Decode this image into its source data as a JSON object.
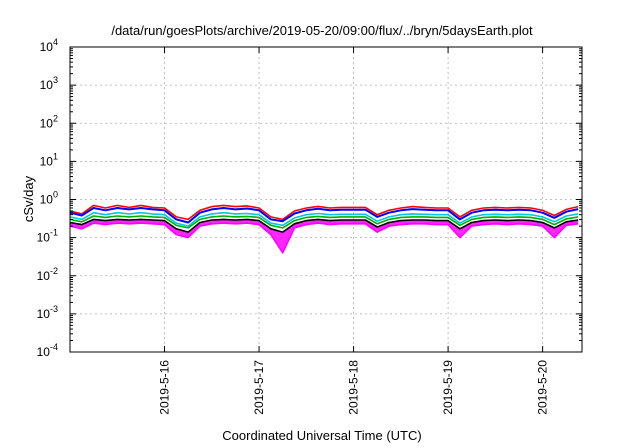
{
  "chart_data": {
    "type": "line",
    "title": "/data/run/goesPlots/archive/2019-05-20/09:00/flux/../bryn/5daysEarth.plot",
    "xlabel": "Coordinated Universal Time (UTC)",
    "ylabel": "cSv/day",
    "yscale": "log",
    "ylim": [
      0.0001,
      10000
    ],
    "xlim": [
      "2019-05-15T00:00",
      "2019-05-20T10:00"
    ],
    "y_ticks": [
      {
        "base": "10",
        "exp": "-4"
      },
      {
        "base": "10",
        "exp": "-3"
      },
      {
        "base": "10",
        "exp": "-2"
      },
      {
        "base": "10",
        "exp": "-1"
      },
      {
        "base": "10",
        "exp": "0"
      },
      {
        "base": "10",
        "exp": "1"
      },
      {
        "base": "10",
        "exp": "2"
      },
      {
        "base": "10",
        "exp": "3"
      },
      {
        "base": "10",
        "exp": "4"
      }
    ],
    "x_ticks": [
      "2019-5-16",
      "2019-5-17",
      "2019-5-18",
      "2019-5-19",
      "2019-5-20"
    ],
    "grid": true,
    "legend": "none",
    "x": [
      "2019-05-15T00:00",
      "2019-05-15T03:00",
      "2019-05-15T06:00",
      "2019-05-15T09:00",
      "2019-05-15T12:00",
      "2019-05-15T15:00",
      "2019-05-15T18:00",
      "2019-05-15T21:00",
      "2019-05-16T00:00",
      "2019-05-16T03:00",
      "2019-05-16T06:00",
      "2019-05-16T09:00",
      "2019-05-16T12:00",
      "2019-05-16T15:00",
      "2019-05-16T18:00",
      "2019-05-16T21:00",
      "2019-05-17T00:00",
      "2019-05-17T03:00",
      "2019-05-17T06:00",
      "2019-05-17T09:00",
      "2019-05-17T12:00",
      "2019-05-17T15:00",
      "2019-05-17T18:00",
      "2019-05-17T21:00",
      "2019-05-18T00:00",
      "2019-05-18T03:00",
      "2019-05-18T06:00",
      "2019-05-18T09:00",
      "2019-05-18T12:00",
      "2019-05-18T15:00",
      "2019-05-18T18:00",
      "2019-05-18T21:00",
      "2019-05-19T00:00",
      "2019-05-19T03:00",
      "2019-05-19T06:00",
      "2019-05-19T09:00",
      "2019-05-19T12:00",
      "2019-05-19T15:00",
      "2019-05-19T18:00",
      "2019-05-19T21:00",
      "2019-05-20T00:00",
      "2019-05-20T03:00",
      "2019-05-20T06:00",
      "2019-05-20T09:00"
    ],
    "series": [
      {
        "color": "#ff0000",
        "values": [
          0.5,
          0.42,
          0.7,
          0.6,
          0.7,
          0.62,
          0.7,
          0.62,
          0.6,
          0.35,
          0.3,
          0.52,
          0.65,
          0.7,
          0.65,
          0.68,
          0.6,
          0.35,
          0.3,
          0.5,
          0.6,
          0.66,
          0.6,
          0.62,
          0.62,
          0.62,
          0.4,
          0.52,
          0.6,
          0.65,
          0.62,
          0.6,
          0.6,
          0.35,
          0.52,
          0.6,
          0.62,
          0.6,
          0.62,
          0.6,
          0.52,
          0.38,
          0.55,
          0.65
        ]
      },
      {
        "color": "#0000ff",
        "values": [
          0.45,
          0.38,
          0.6,
          0.52,
          0.6,
          0.55,
          0.6,
          0.55,
          0.52,
          0.3,
          0.25,
          0.45,
          0.55,
          0.6,
          0.55,
          0.58,
          0.52,
          0.3,
          0.27,
          0.43,
          0.52,
          0.57,
          0.52,
          0.54,
          0.54,
          0.54,
          0.35,
          0.45,
          0.52,
          0.56,
          0.54,
          0.52,
          0.52,
          0.3,
          0.45,
          0.52,
          0.54,
          0.52,
          0.54,
          0.52,
          0.45,
          0.33,
          0.48,
          0.56
        ]
      },
      {
        "color": "#00c8e0",
        "values": [
          0.35,
          0.3,
          0.45,
          0.4,
          0.45,
          0.42,
          0.45,
          0.42,
          0.4,
          0.24,
          0.2,
          0.35,
          0.42,
          0.45,
          0.42,
          0.43,
          0.4,
          0.24,
          0.21,
          0.33,
          0.4,
          0.43,
          0.4,
          0.41,
          0.41,
          0.41,
          0.27,
          0.35,
          0.4,
          0.42,
          0.41,
          0.4,
          0.4,
          0.24,
          0.35,
          0.4,
          0.41,
          0.4,
          0.41,
          0.4,
          0.35,
          0.26,
          0.37,
          0.42
        ]
      },
      {
        "color": "#00b000",
        "values": [
          0.3,
          0.26,
          0.37,
          0.34,
          0.37,
          0.35,
          0.37,
          0.35,
          0.34,
          0.21,
          0.18,
          0.3,
          0.35,
          0.37,
          0.35,
          0.36,
          0.34,
          0.21,
          0.18,
          0.28,
          0.34,
          0.36,
          0.34,
          0.35,
          0.35,
          0.35,
          0.23,
          0.3,
          0.34,
          0.35,
          0.35,
          0.34,
          0.34,
          0.21,
          0.3,
          0.34,
          0.35,
          0.34,
          0.35,
          0.34,
          0.3,
          0.22,
          0.31,
          0.35
        ]
      },
      {
        "color": "#000000",
        "values": [
          0.25,
          0.22,
          0.3,
          0.28,
          0.3,
          0.29,
          0.3,
          0.29,
          0.28,
          0.17,
          0.14,
          0.25,
          0.29,
          0.3,
          0.29,
          0.3,
          0.28,
          0.17,
          0.14,
          0.23,
          0.28,
          0.3,
          0.28,
          0.29,
          0.29,
          0.29,
          0.19,
          0.25,
          0.28,
          0.29,
          0.29,
          0.28,
          0.28,
          0.17,
          0.25,
          0.28,
          0.29,
          0.28,
          0.29,
          0.28,
          0.25,
          0.18,
          0.26,
          0.29
        ]
      },
      {
        "color": "#ff00ff",
        "values": [
          0.2,
          0.17,
          0.24,
          0.22,
          0.24,
          0.23,
          0.24,
          0.23,
          0.22,
          0.12,
          0.1,
          0.2,
          0.23,
          0.24,
          0.23,
          0.24,
          0.22,
          0.12,
          0.04,
          0.18,
          0.22,
          0.24,
          0.22,
          0.23,
          0.23,
          0.23,
          0.14,
          0.2,
          0.22,
          0.23,
          0.23,
          0.22,
          0.22,
          0.1,
          0.2,
          0.22,
          0.23,
          0.22,
          0.23,
          0.22,
          0.2,
          0.1,
          0.21,
          0.23
        ]
      }
    ]
  }
}
